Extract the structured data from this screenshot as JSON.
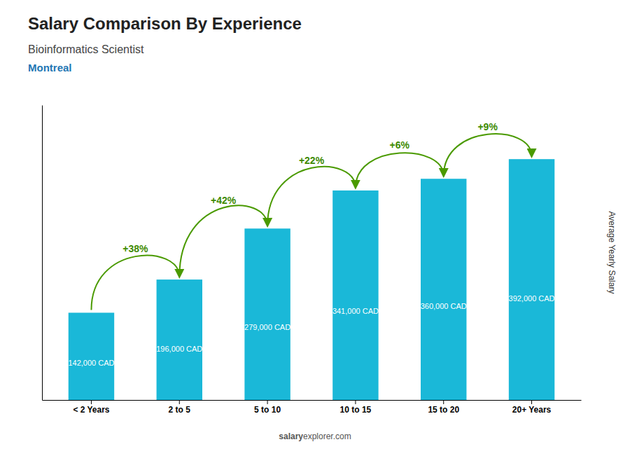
{
  "chart_data": {
    "type": "bar",
    "title": "Salary Comparison By Experience",
    "subtitle": "Bioinformatics Scientist",
    "y_label": "Average Yearly Salary",
    "categories": [
      "< 2 Years",
      "2 to 5",
      "5 to 10",
      "10 to 15",
      "15 to 20",
      "20+ Years"
    ],
    "values": [
      142000,
      196000,
      279000,
      341000,
      360000,
      392000
    ],
    "value_labels": [
      "142,000 CAD",
      "196,000 CAD",
      "279,000 CAD",
      "341,000 CAD",
      "360,000 CAD",
      "392,000 CAD"
    ],
    "data_labels": true,
    "color": "#1ab8d8",
    "ylim": [
      0,
      480000
    ],
    "tick_labels": "x",
    "grid": false,
    "annotations": {
      "city": "Montreal",
      "changes": [
        "+38%",
        "+42%",
        "+22%",
        "+6%",
        "+9%"
      ],
      "source": [
        "salary",
        "explorer.com"
      ]
    }
  }
}
